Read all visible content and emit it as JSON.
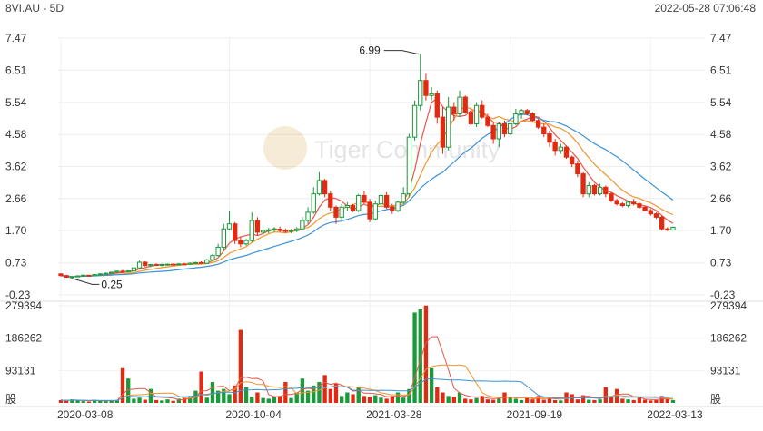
{
  "header": {
    "symbol": "8VI.AU - 5D",
    "datetime": "2022-05-28 07:06:48"
  },
  "watermark": {
    "text": "Tiger Community"
  },
  "chart_data": {
    "type": "candlestick",
    "price_axis": {
      "ticks": [
        "7.47",
        "6.51",
        "5.54",
        "4.58",
        "3.62",
        "2.66",
        "1.70",
        "0.73",
        "-0.23"
      ],
      "range": [
        -0.23,
        7.47
      ]
    },
    "volume_axis": {
      "ticks": [
        "279394",
        "186262",
        "93131"
      ],
      "range": [
        0,
        279394
      ],
      "unit_label": "股"
    },
    "x_ticks": [
      {
        "label": "2020-03-08",
        "index": 0
      },
      {
        "label": "2020-10-04",
        "index": 30
      },
      {
        "label": "2021-03-28",
        "index": 55
      },
      {
        "label": "2021-09-19",
        "index": 80
      },
      {
        "label": "2022-03-13",
        "index": 105
      }
    ],
    "annotations": [
      {
        "text": "6.99",
        "type": "max"
      },
      {
        "text": "0.25",
        "type": "min"
      }
    ],
    "colors": {
      "up": "#1a9a3a",
      "down": "#e12a12",
      "ma_short": "#e8564a",
      "ma_mid": "#f0962e",
      "ma_long": "#3c93d8"
    },
    "ohlc": [
      [
        0.4,
        0.42,
        0.32,
        0.35
      ],
      [
        0.35,
        0.37,
        0.28,
        0.3
      ],
      [
        0.3,
        0.33,
        0.25,
        0.31
      ],
      [
        0.31,
        0.36,
        0.3,
        0.34
      ],
      [
        0.34,
        0.38,
        0.32,
        0.36
      ],
      [
        0.36,
        0.37,
        0.33,
        0.35
      ],
      [
        0.35,
        0.4,
        0.34,
        0.38
      ],
      [
        0.38,
        0.42,
        0.36,
        0.4
      ],
      [
        0.4,
        0.44,
        0.38,
        0.42
      ],
      [
        0.42,
        0.47,
        0.4,
        0.45
      ],
      [
        0.45,
        0.5,
        0.43,
        0.48
      ],
      [
        0.48,
        0.52,
        0.44,
        0.46
      ],
      [
        0.46,
        0.5,
        0.44,
        0.49
      ],
      [
        0.49,
        0.6,
        0.47,
        0.58
      ],
      [
        0.58,
        0.8,
        0.56,
        0.75
      ],
      [
        0.75,
        0.78,
        0.62,
        0.65
      ],
      [
        0.65,
        0.7,
        0.6,
        0.68
      ],
      [
        0.68,
        0.72,
        0.64,
        0.66
      ],
      [
        0.66,
        0.7,
        0.63,
        0.68
      ],
      [
        0.68,
        0.71,
        0.65,
        0.69
      ],
      [
        0.69,
        0.72,
        0.66,
        0.68
      ],
      [
        0.68,
        0.72,
        0.66,
        0.7
      ],
      [
        0.7,
        0.73,
        0.67,
        0.69
      ],
      [
        0.69,
        0.74,
        0.68,
        0.72
      ],
      [
        0.72,
        0.76,
        0.7,
        0.74
      ],
      [
        0.74,
        0.78,
        0.7,
        0.72
      ],
      [
        0.72,
        0.85,
        0.7,
        0.82
      ],
      [
        0.82,
        1.0,
        0.8,
        0.95
      ],
      [
        0.95,
        1.3,
        0.92,
        1.2
      ],
      [
        1.2,
        1.9,
        1.1,
        1.75
      ],
      [
        1.75,
        2.3,
        1.7,
        1.9
      ],
      [
        1.9,
        1.95,
        1.3,
        1.4
      ],
      [
        1.4,
        1.5,
        1.2,
        1.3
      ],
      [
        1.3,
        1.45,
        1.25,
        1.4
      ],
      [
        1.4,
        2.25,
        1.35,
        2.0
      ],
      [
        2.0,
        2.1,
        1.55,
        1.65
      ],
      [
        1.65,
        1.75,
        1.6,
        1.7
      ],
      [
        1.7,
        1.78,
        1.62,
        1.72
      ],
      [
        1.72,
        1.8,
        1.66,
        1.74
      ],
      [
        1.74,
        1.82,
        1.66,
        1.7
      ],
      [
        1.7,
        1.76,
        1.63,
        1.68
      ],
      [
        1.68,
        1.75,
        1.62,
        1.7
      ],
      [
        1.7,
        1.8,
        1.65,
        1.75
      ],
      [
        1.75,
        2.1,
        1.72,
        2.0
      ],
      [
        2.0,
        2.4,
        1.9,
        2.25
      ],
      [
        2.25,
        3.0,
        2.2,
        2.8
      ],
      [
        2.8,
        3.45,
        2.75,
        3.2
      ],
      [
        3.2,
        3.25,
        2.7,
        2.8
      ],
      [
        2.8,
        2.9,
        2.3,
        2.4
      ],
      [
        2.4,
        2.45,
        1.9,
        2.1
      ],
      [
        2.1,
        2.5,
        2.0,
        2.4
      ],
      [
        2.4,
        2.55,
        2.3,
        2.45
      ],
      [
        2.45,
        2.5,
        2.25,
        2.3
      ],
      [
        2.3,
        2.8,
        2.25,
        2.75
      ],
      [
        2.75,
        2.9,
        2.5,
        2.55
      ],
      [
        2.55,
        2.65,
        1.95,
        2.05
      ],
      [
        2.05,
        2.6,
        2.0,
        2.5
      ],
      [
        2.5,
        2.8,
        2.4,
        2.75
      ],
      [
        2.75,
        2.85,
        2.35,
        2.4
      ],
      [
        2.4,
        2.5,
        2.2,
        2.3
      ],
      [
        2.3,
        2.6,
        2.25,
        2.55
      ],
      [
        2.55,
        3.0,
        2.5,
        2.8
      ],
      [
        2.8,
        4.6,
        2.7,
        4.5
      ],
      [
        4.5,
        5.6,
        4.4,
        5.45
      ],
      [
        5.45,
        6.99,
        5.3,
        6.2
      ],
      [
        6.2,
        6.4,
        5.6,
        5.75
      ],
      [
        5.75,
        6.0,
        5.6,
        5.8
      ],
      [
        5.8,
        5.9,
        4.9,
        5.1
      ],
      [
        5.1,
        5.4,
        4.0,
        4.2
      ],
      [
        4.2,
        5.7,
        4.1,
        5.4
      ],
      [
        5.4,
        5.55,
        5.0,
        5.2
      ],
      [
        5.2,
        5.9,
        5.1,
        5.7
      ],
      [
        5.7,
        5.75,
        5.2,
        5.25
      ],
      [
        5.25,
        5.4,
        4.85,
        4.9
      ],
      [
        4.9,
        5.55,
        4.8,
        5.45
      ],
      [
        5.45,
        5.6,
        5.05,
        5.1
      ],
      [
        5.1,
        5.2,
        4.8,
        4.85
      ],
      [
        4.85,
        4.95,
        4.3,
        4.45
      ],
      [
        4.45,
        4.95,
        4.2,
        4.9
      ],
      [
        4.9,
        5.0,
        4.5,
        4.6
      ],
      [
        4.6,
        4.95,
        4.55,
        4.9
      ],
      [
        4.9,
        5.35,
        4.85,
        5.2
      ],
      [
        5.2,
        5.35,
        5.05,
        5.3
      ],
      [
        5.3,
        5.35,
        5.15,
        5.2
      ],
      [
        5.2,
        5.25,
        4.95,
        5.0
      ],
      [
        5.0,
        5.05,
        4.75,
        4.8
      ],
      [
        4.8,
        4.9,
        4.5,
        4.6
      ],
      [
        4.6,
        4.7,
        4.2,
        4.35
      ],
      [
        4.35,
        4.45,
        3.95,
        4.1
      ],
      [
        4.1,
        4.3,
        4.0,
        4.2
      ],
      [
        4.2,
        4.25,
        3.85,
        3.9
      ],
      [
        3.9,
        3.95,
        3.6,
        3.7
      ],
      [
        3.7,
        3.8,
        3.3,
        3.4
      ],
      [
        3.4,
        3.45,
        2.7,
        2.8
      ],
      [
        2.8,
        3.15,
        2.7,
        3.05
      ],
      [
        3.05,
        3.1,
        2.75,
        2.8
      ],
      [
        2.8,
        3.1,
        2.75,
        3.0
      ],
      [
        3.0,
        3.05,
        2.7,
        2.8
      ],
      [
        2.8,
        2.85,
        2.55,
        2.6
      ],
      [
        2.6,
        2.65,
        2.45,
        2.5
      ],
      [
        2.5,
        2.55,
        2.4,
        2.45
      ],
      [
        2.45,
        2.6,
        2.4,
        2.55
      ],
      [
        2.55,
        2.65,
        2.45,
        2.5
      ],
      [
        2.5,
        2.55,
        2.35,
        2.4
      ],
      [
        2.4,
        2.45,
        2.28,
        2.3
      ],
      [
        2.3,
        2.35,
        2.15,
        2.2
      ],
      [
        2.2,
        2.25,
        2.05,
        2.1
      ],
      [
        2.1,
        2.15,
        1.7,
        1.75
      ],
      [
        1.75,
        1.8,
        1.68,
        1.72
      ],
      [
        1.72,
        1.82,
        1.7,
        1.8
      ]
    ],
    "volume": [
      8000,
      6000,
      10000,
      7000,
      5000,
      4000,
      9000,
      6000,
      5000,
      7000,
      8000,
      100000,
      70000,
      12000,
      15000,
      9000,
      40000,
      8000,
      7000,
      10000,
      6000,
      12000,
      15000,
      20000,
      35000,
      90000,
      15000,
      60000,
      35000,
      40000,
      25000,
      50000,
      210000,
      45000,
      18000,
      30000,
      14000,
      12000,
      16000,
      20000,
      60000,
      14000,
      30000,
      70000,
      35000,
      50000,
      60000,
      80000,
      40000,
      55000,
      20000,
      30000,
      25000,
      45000,
      20000,
      18000,
      22000,
      15000,
      12000,
      20000,
      30000,
      15000,
      40000,
      260000,
      270000,
      280000,
      100000,
      45000,
      30000,
      20000,
      18000,
      30000,
      12000,
      10000,
      14000,
      20000,
      10000,
      9000,
      12000,
      30000,
      15000,
      12000,
      8000,
      15000,
      10000,
      20000,
      9000,
      12000,
      8000,
      7000,
      30000,
      25000,
      10000,
      22000,
      9000,
      8000,
      10000,
      45000,
      20000,
      40000,
      12000,
      10000,
      8000,
      15000,
      9000,
      7000,
      8000,
      20000,
      12000,
      8000
    ]
  }
}
